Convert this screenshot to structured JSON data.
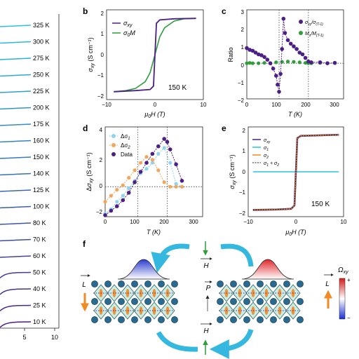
{
  "panel_letters": {
    "b": "b",
    "c": "c",
    "d": "d",
    "e": "e",
    "f": "f"
  },
  "panel_a": {
    "temperature_labels": [
      "325 K",
      "300 K",
      "275 K",
      "250 K",
      "225 K",
      "200 K",
      "175 K",
      "160 K",
      "150 K",
      "140 K",
      "125 K",
      "100 K",
      "80 K",
      "70 K",
      "60 K",
      "50 K",
      "40 K",
      "25 K",
      "10 K"
    ],
    "x_ticks": [
      "5",
      "10"
    ],
    "colors": {
      "hot": "#29c3e8",
      "cold": "#4b1f86"
    }
  },
  "panel_b": {
    "annotation": "150 K",
    "legend": [
      "σ_xy",
      "σ_0M"
    ],
    "x_ticks": [
      "−10",
      "0",
      "10"
    ],
    "y_ticks": [
      "2",
      "1",
      "0",
      "−1",
      "−2"
    ],
    "xlabel": "μ0H (T)",
    "ylabel": "σxy (S cm⁻¹)"
  },
  "panel_c": {
    "legend": [
      "σ_xy/σ_(T-1)",
      "M_s/M_(T-1)"
    ],
    "x_ticks": [
      "0",
      "100",
      "200",
      "300"
    ],
    "y_ticks": [
      "3",
      "2",
      "1",
      "0",
      "−1",
      "−2"
    ],
    "xlabel": "T (K)",
    "ylabel": "Ratio"
  },
  "panel_d": {
    "legend": [
      "Δσ1",
      "Δσ2",
      "Data"
    ],
    "x_ticks": [
      "0",
      "100",
      "200",
      "300"
    ],
    "y_ticks": [
      "4",
      "2",
      "0",
      "−2"
    ],
    "xlabel": "T (K)",
    "ylabel": "Δσxy (S cm⁻¹)"
  },
  "panel_e": {
    "annotation": "150 K",
    "legend": [
      "σ_xy",
      "σ_1",
      "σ_2",
      "σ_1 + σ_2"
    ],
    "x_ticks": [
      "−10",
      "0",
      "10"
    ],
    "y_ticks": [
      "2",
      "1",
      "0",
      "−1",
      "−2"
    ],
    "xlabel": "μ0H (T)",
    "ylabel": "σxy (S cm⁻¹)"
  },
  "panel_f": {
    "labels": {
      "H": "H",
      "P": "P",
      "L": "L",
      "omega": "Ωxy",
      "plus": "+",
      "minus": "−"
    },
    "colors": {
      "arrow": "#35b8e0",
      "field": "#2e9e3a",
      "spin": "#f08a24",
      "atom": "#2a6a8e"
    }
  },
  "chart_data": [
    {
      "panel": "b",
      "type": "line",
      "title": "",
      "xlabel": "μ0H (T)",
      "ylabel": "σxy (S cm⁻¹)",
      "xlim": [
        -10,
        10
      ],
      "ylim": [
        -2,
        2
      ],
      "annotation": "150 K",
      "series": [
        {
          "name": "σ_xy",
          "color": "#4b1f86",
          "x": [
            -8.5,
            -4,
            -1,
            -0.3,
            0.3,
            1,
            4,
            8.5
          ],
          "y": [
            -1.65,
            -1.6,
            -1.55,
            -1.4,
            1.4,
            1.55,
            1.6,
            1.62
          ]
        },
        {
          "name": "σ_0M",
          "color": "#2e9e3a",
          "x": [
            -8.5,
            -6,
            -4,
            -2,
            -1,
            0,
            1,
            2,
            4,
            6,
            8.5
          ],
          "y": [
            -1.65,
            -1.6,
            -1.5,
            -1.2,
            -0.8,
            0,
            0.8,
            1.2,
            1.5,
            1.6,
            1.62
          ]
        }
      ]
    },
    {
      "panel": "c",
      "type": "scatter",
      "title": "",
      "xlabel": "T (K)",
      "ylabel": "Ratio",
      "xlim": [
        0,
        330
      ],
      "ylim": [
        -2,
        3
      ],
      "vlines": [
        110,
        210
      ],
      "series": [
        {
          "name": "σ_xy/σ_(T-1)",
          "color": "#4b1f86",
          "x": [
            0,
            10,
            20,
            30,
            40,
            50,
            60,
            70,
            80,
            90,
            100,
            105,
            110,
            115,
            120,
            125,
            130,
            140,
            150,
            160,
            170,
            180,
            190,
            200,
            210,
            220,
            250,
            275,
            300
          ],
          "y": [
            0.85,
            0.75,
            0.7,
            0.6,
            0.5,
            0.45,
            0.35,
            0.2,
            0.0,
            -0.3,
            -0.7,
            -1.2,
            -1.6,
            -0.6,
            0.8,
            2.5,
            1.7,
            1.3,
            1.1,
            0.95,
            0.8,
            0.6,
            0.5,
            0.3,
            0.1,
            0.05,
            0.05,
            0.0,
            0.02
          ]
        },
        {
          "name": "M_s/M_(T-1)",
          "color": "#2e9e3a",
          "x": [
            0,
            10,
            20,
            40,
            60,
            80,
            100,
            120,
            140,
            160,
            180,
            200,
            210,
            220,
            250,
            275,
            300
          ],
          "y": [
            0.0,
            0.02,
            0.0,
            0.0,
            0.02,
            0.0,
            0.05,
            0.08,
            0.1,
            0.08,
            0.05,
            0.02,
            0.0,
            0.0,
            0.02,
            0.0,
            0.02
          ]
        }
      ]
    },
    {
      "panel": "d",
      "type": "scatter",
      "title": "",
      "xlabel": "T (K)",
      "ylabel": "Δσxy (S cm⁻¹)",
      "xlim": [
        0,
        330
      ],
      "ylim": [
        -2,
        4
      ],
      "vlines": [
        110,
        210
      ],
      "series": [
        {
          "name": "Δσ1",
          "color": "#8fd3ee",
          "x": [
            0,
            20,
            40,
            60,
            80,
            100,
            120,
            140,
            160,
            180,
            200,
            220,
            240,
            260
          ],
          "y": [
            -1.8,
            -1.5,
            -1.0,
            -0.6,
            -0.1,
            0.4,
            0.9,
            1.2,
            1.6,
            2.2,
            2.6,
            1.6,
            0.2,
            0.0
          ]
        },
        {
          "name": "Δσ2",
          "color": "#f0a65c",
          "x": [
            0,
            20,
            40,
            60,
            80,
            100,
            120,
            140,
            160,
            180,
            200,
            220,
            240,
            260
          ],
          "y": [
            -1.0,
            -0.6,
            -0.2,
            0.1,
            0.6,
            1.1,
            1.6,
            2.0,
            1.8,
            1.1,
            0.3,
            0.0,
            0.0,
            0.0
          ]
        },
        {
          "name": "Data",
          "color": "#4b1f86",
          "x": [
            0,
            20,
            40,
            60,
            80,
            100,
            120,
            140,
            160,
            180,
            200,
            210,
            220,
            240,
            260
          ],
          "y": [
            -1.9,
            -1.6,
            -1.3,
            -0.9,
            -0.4,
            0.3,
            1.0,
            1.6,
            2.2,
            2.7,
            3.2,
            3.0,
            2.5,
            1.5,
            0.4
          ]
        }
      ]
    },
    {
      "panel": "e",
      "type": "line",
      "title": "",
      "xlabel": "μ0H (T)",
      "ylabel": "σxy (S cm⁻¹)",
      "xlim": [
        -10,
        10
      ],
      "ylim": [
        -2,
        2
      ],
      "annotation": "150 K",
      "series": [
        {
          "name": "σ_xy",
          "color": "#4b1f86",
          "x": [
            -9,
            -4,
            -1,
            -0.3,
            0.3,
            1,
            4,
            9
          ],
          "y": [
            -1.7,
            -1.68,
            -1.65,
            -1.5,
            1.5,
            1.6,
            1.62,
            1.65
          ]
        },
        {
          "name": "σ_1",
          "color": "#29c3e8",
          "x": [
            -9,
            9
          ],
          "y": [
            0,
            0
          ]
        },
        {
          "name": "σ_2",
          "color": "#f08a24",
          "x": [
            -9,
            -4,
            -1,
            -0.3,
            0.3,
            1,
            4,
            9
          ],
          "y": [
            -1.7,
            -1.68,
            -1.65,
            -1.5,
            1.5,
            1.6,
            1.62,
            1.65
          ]
        },
        {
          "name": "σ_1 + σ_2",
          "color": "#222222",
          "x": [
            -9,
            -4,
            -1,
            -0.3,
            0.3,
            1,
            4,
            9
          ],
          "y": [
            -1.7,
            -1.68,
            -1.65,
            -1.5,
            1.5,
            1.6,
            1.62,
            1.65
          ]
        }
      ]
    }
  ]
}
